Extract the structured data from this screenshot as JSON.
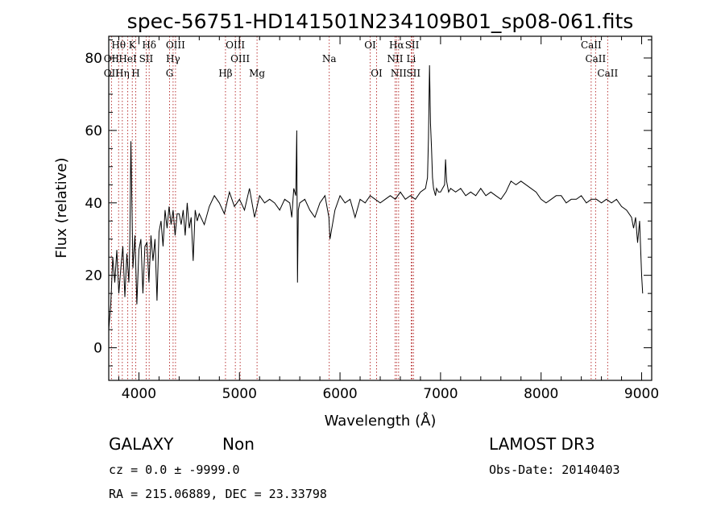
{
  "chart_data": {
    "type": "line",
    "title": "spec-56751-HD141501N234109B01_sp08-061.fits",
    "xlabel": "Wavelength (Å)",
    "ylabel": "Flux (relative)",
    "xlim": [
      3700,
      9100
    ],
    "ylim": [
      -9,
      86
    ],
    "x_ticks": [
      4000,
      5000,
      6000,
      7000,
      8000,
      9000
    ],
    "y_ticks": [
      0,
      20,
      40,
      60,
      80
    ],
    "colors": {
      "spectrum": "#000000",
      "line_markers": "#b22222",
      "axes": "#000000"
    },
    "series": [
      {
        "name": "spectrum",
        "x": [
          3700,
          3720,
          3740,
          3760,
          3780,
          3800,
          3820,
          3840,
          3860,
          3880,
          3900,
          3910,
          3920,
          3940,
          3960,
          3980,
          4000,
          4020,
          4040,
          4060,
          4080,
          4100,
          4120,
          4140,
          4160,
          4180,
          4200,
          4220,
          4240,
          4260,
          4280,
          4300,
          4320,
          4340,
          4360,
          4380,
          4400,
          4420,
          4440,
          4460,
          4480,
          4500,
          4520,
          4540,
          4560,
          4580,
          4600,
          4650,
          4700,
          4750,
          4800,
          4850,
          4900,
          4950,
          5000,
          5050,
          5100,
          5150,
          5200,
          5250,
          5300,
          5350,
          5400,
          5450,
          5500,
          5520,
          5540,
          5560,
          5570,
          5577,
          5585,
          5600,
          5650,
          5700,
          5750,
          5800,
          5850,
          5890,
          5900,
          5950,
          6000,
          6050,
          6100,
          6150,
          6200,
          6250,
          6300,
          6350,
          6400,
          6450,
          6500,
          6550,
          6600,
          6650,
          6700,
          6750,
          6800,
          6850,
          6870,
          6880,
          6890,
          6900,
          6910,
          6920,
          6930,
          6940,
          6950,
          6960,
          6980,
          7000,
          7020,
          7040,
          7050,
          7060,
          7080,
          7100,
          7150,
          7200,
          7250,
          7300,
          7350,
          7400,
          7450,
          7500,
          7550,
          7600,
          7650,
          7700,
          7750,
          7800,
          7850,
          7900,
          7950,
          8000,
          8050,
          8100,
          8150,
          8200,
          8250,
          8300,
          8350,
          8400,
          8450,
          8500,
          8550,
          8600,
          8650,
          8700,
          8750,
          8800,
          8850,
          8900,
          8920,
          8940,
          8960,
          8980,
          9000,
          9010
        ],
        "values": [
          5,
          12,
          25,
          18,
          27,
          15,
          22,
          28,
          14,
          26,
          18,
          30,
          57,
          22,
          31,
          12,
          27,
          30,
          15,
          28,
          29,
          18,
          31,
          24,
          30,
          13,
          32,
          35,
          28,
          38,
          33,
          39,
          34,
          38,
          31,
          37,
          37,
          34,
          38,
          31,
          40,
          33,
          36,
          24,
          38,
          35,
          37,
          34,
          39,
          42,
          40,
          37,
          43,
          39,
          41,
          38,
          44,
          36,
          42,
          40,
          41,
          40,
          38,
          41,
          40,
          36,
          44,
          42,
          60,
          18,
          38,
          40,
          41,
          38,
          36,
          40,
          42,
          36,
          30,
          38,
          42,
          40,
          41,
          36,
          41,
          40,
          42,
          41,
          40,
          41,
          42,
          41,
          43,
          41,
          42,
          41,
          43,
          44,
          47,
          58,
          78,
          62,
          55,
          47,
          44,
          43,
          42,
          44,
          43,
          43,
          44,
          45,
          52,
          46,
          43,
          44,
          43,
          44,
          42,
          43,
          42,
          44,
          42,
          43,
          42,
          41,
          43,
          46,
          45,
          46,
          45,
          44,
          43,
          41,
          40,
          41,
          42,
          42,
          40,
          41,
          41,
          42,
          40,
          41,
          41,
          40,
          41,
          40,
          41,
          39,
          38,
          36,
          33,
          36,
          29,
          35,
          20,
          15
        ]
      }
    ],
    "line_markers": [
      {
        "name": "O II",
        "wavelength": 3727,
        "label": "OII",
        "row": 1
      },
      {
        "name": "O II",
        "wavelength": 3727,
        "label": "OII",
        "row": 2
      },
      {
        "name": "H theta",
        "wavelength": 3798,
        "label": "Hθ",
        "row": 0
      },
      {
        "name": "He I",
        "wavelength": 3889,
        "label": "HeI",
        "row": 1
      },
      {
        "name": "H eta",
        "wavelength": 3835,
        "label": "Hη",
        "row": 2
      },
      {
        "name": "K",
        "wavelength": 3934,
        "label": "K",
        "row": 0
      },
      {
        "name": "H",
        "wavelength": 3968,
        "label": "H",
        "row": 2
      },
      {
        "name": "H delta",
        "wavelength": 4102,
        "label": "Hδ",
        "row": 0
      },
      {
        "name": "S II",
        "wavelength": 4072,
        "label": "SII",
        "row": 1
      },
      {
        "name": "O III",
        "wavelength": 4364,
        "label": "OIII",
        "row": 0
      },
      {
        "name": "H gamma",
        "wavelength": 4340,
        "label": "Hγ",
        "row": 1
      },
      {
        "name": "G band",
        "wavelength": 4305,
        "label": "G",
        "row": 2
      },
      {
        "name": "H beta",
        "wavelength": 4861,
        "label": "Hβ",
        "row": 2
      },
      {
        "name": "O III",
        "wavelength": 4959,
        "label": "OIII",
        "row": 0
      },
      {
        "name": "O III",
        "wavelength": 5007,
        "label": "OIII",
        "row": 1
      },
      {
        "name": "Mg",
        "wavelength": 5175,
        "label": "Mg",
        "row": 2
      },
      {
        "name": "Na",
        "wavelength": 5893,
        "label": "Na",
        "row": 1
      },
      {
        "name": "O I",
        "wavelength": 6300,
        "label": "OI",
        "row": 0
      },
      {
        "name": "O I",
        "wavelength": 6364,
        "label": "OI",
        "row": 2
      },
      {
        "name": "H alpha",
        "wavelength": 6563,
        "label": "Hα",
        "row": 0
      },
      {
        "name": "N II",
        "wavelength": 6548,
        "label": "NII",
        "row": 1
      },
      {
        "name": "N II",
        "wavelength": 6583,
        "label": "NII",
        "row": 2
      },
      {
        "name": "S II",
        "wavelength": 6717,
        "label": "SII",
        "row": 0
      },
      {
        "name": "Li",
        "wavelength": 6708,
        "label": "Li",
        "row": 1
      },
      {
        "name": "S II",
        "wavelength": 6731,
        "label": "SII",
        "row": 2
      },
      {
        "name": "Ca II",
        "wavelength": 8498,
        "label": "CaII",
        "row": 0
      },
      {
        "name": "Ca II",
        "wavelength": 8542,
        "label": "CaII",
        "row": 1
      },
      {
        "name": "Ca II",
        "wavelength": 8662,
        "label": "CaII",
        "row": 2
      }
    ]
  },
  "info": {
    "class": "GALAXY",
    "subclass": "Non",
    "survey": "LAMOST DR3",
    "cz": "cz = 0.0 ± -9999.0",
    "obs_date": "Obs-Date: 20140403",
    "coords": "RA = 215.06889, DEC =  23.33798"
  }
}
